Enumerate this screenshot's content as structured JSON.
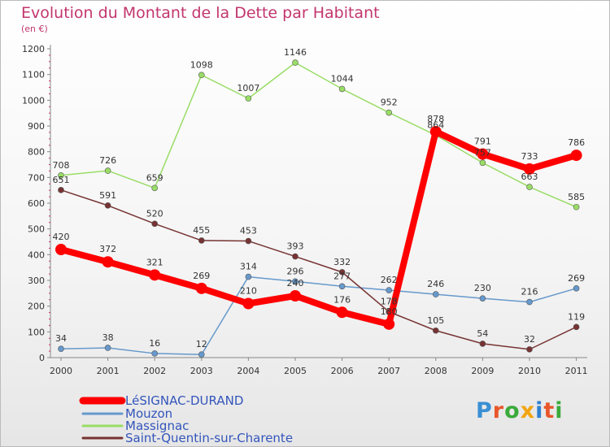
{
  "header": {
    "title": "Evolution du Montant de la Dette par Habitant",
    "subtitle": "(en €)"
  },
  "logo": {
    "letters": [
      {
        "ch": "P",
        "color": "#3a8fd4"
      },
      {
        "ch": "r",
        "color": "#e8562a"
      },
      {
        "ch": "o",
        "color": "#3aaa3a"
      },
      {
        "ch": "x",
        "color": "#f2a510"
      },
      {
        "ch": "i",
        "color": "#2f7fcf"
      },
      {
        "ch": "t",
        "color": "#e8562a"
      },
      {
        "ch": "i",
        "color": "#3aaa3a"
      }
    ]
  },
  "chart_data": {
    "type": "line",
    "title": "Evolution du Montant de la Dette par Habitant",
    "subtitle": "(en €)",
    "xlabel": "",
    "ylabel": "",
    "x": [
      "2000",
      "2001",
      "2002",
      "2003",
      "2004",
      "2005",
      "2006",
      "2007",
      "2008",
      "2009",
      "2010",
      "2011"
    ],
    "ylim": [
      0,
      1200
    ],
    "yticks": [
      0,
      100,
      200,
      300,
      400,
      500,
      600,
      700,
      800,
      900,
      1000,
      1100,
      1200
    ],
    "grid": false,
    "legend": "bottom-left",
    "series": [
      {
        "name": "LéSIGNAC-DURAND",
        "color": "#ff0000",
        "width": 8,
        "marker": 7,
        "values": [
          420,
          372,
          321,
          269,
          210,
          240,
          176,
          130,
          878,
          791,
          733,
          786
        ]
      },
      {
        "name": "Mouzon",
        "color": "#6699cc",
        "width": 1.5,
        "marker": 3.5,
        "values": [
          34,
          38,
          16,
          12,
          314,
          296,
          277,
          262,
          246,
          230,
          216,
          269
        ]
      },
      {
        "name": "Massignac",
        "color": "#99dd66",
        "width": 1.5,
        "marker": 3.5,
        "values": [
          708,
          726,
          659,
          1098,
          1007,
          1146,
          1044,
          952,
          864,
          757,
          663,
          585
        ]
      },
      {
        "name": "Saint-Quentin-sur-Charente",
        "color": "#773333",
        "width": 1.5,
        "marker": 3.5,
        "values": [
          651,
          591,
          520,
          455,
          453,
          393,
          332,
          178,
          105,
          54,
          32,
          119
        ]
      }
    ]
  }
}
